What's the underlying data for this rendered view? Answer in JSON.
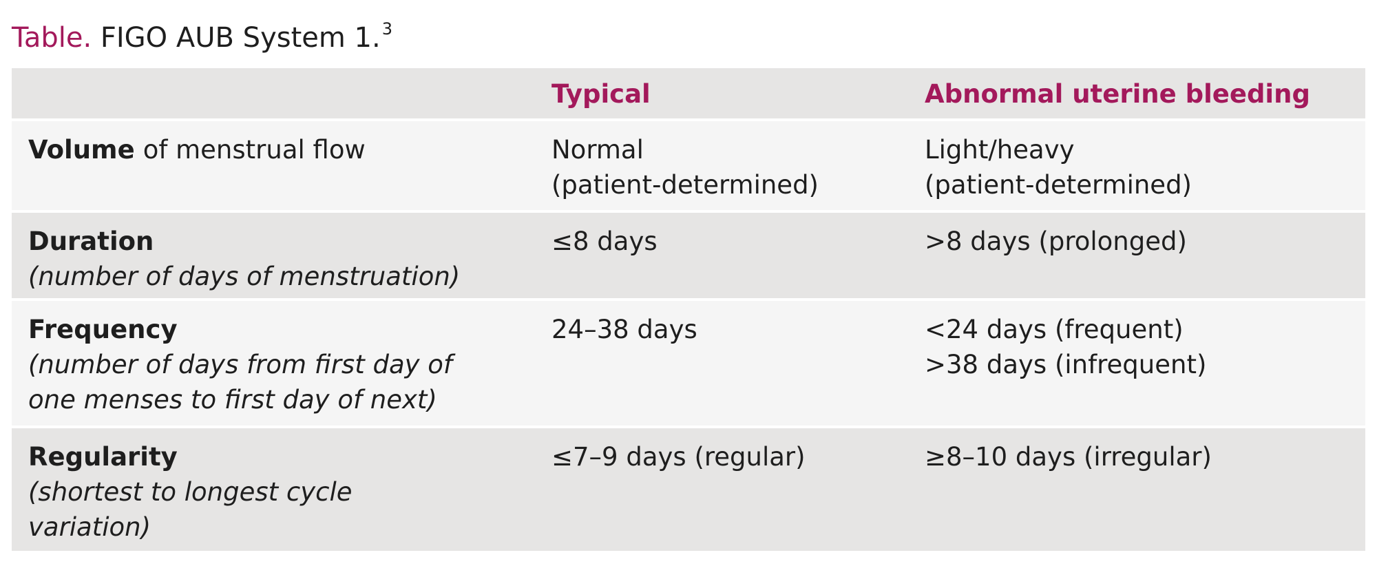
{
  "header": {
    "title_label": "Table.",
    "title": "FIGO AUB System 1.",
    "title_ref": "3"
  },
  "table": {
    "columns": [
      "Typical",
      "Abnormal uterine bleeding"
    ],
    "rows": [
      {
        "label": "Volume",
        "label_suffix": "of menstrual flow",
        "description": [],
        "typical": [
          "Normal",
          "(patient-determined)"
        ],
        "abnormal": [
          "Light/heavy",
          "(patient-determined)"
        ]
      },
      {
        "label": "Duration",
        "description": [
          "(number of days of menstruation)"
        ],
        "typical": [
          "≤8 days"
        ],
        "abnormal": [
          ">8 days (prolonged)"
        ]
      },
      {
        "label": "Frequency",
        "description": [
          "(number of days from first day of",
          "one menses to first day of next)"
        ],
        "typical": [
          "24–38 days"
        ],
        "abnormal": [
          "<24 days (frequent)",
          ">38 days (infrequent)"
        ]
      },
      {
        "label": "Regularity",
        "description": [
          "(shortest to longest cycle",
          "variation)"
        ],
        "typical": [
          "≤7–9 days (regular)"
        ],
        "abnormal": [
          "≥8–10 days (irregular)"
        ]
      }
    ]
  }
}
